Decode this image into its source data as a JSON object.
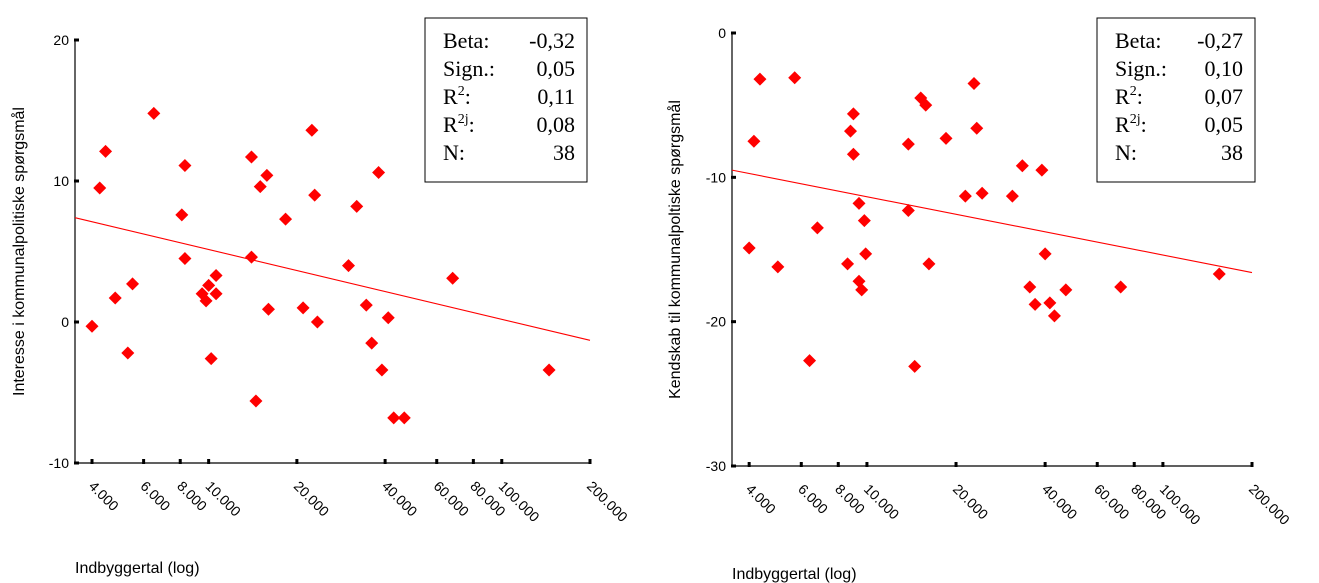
{
  "chart_data": [
    {
      "type": "scatter",
      "title": "",
      "xlabel": "Indbyggertal (log)",
      "ylabel": "Interesse i kommunalpolitiske spørgsmål",
      "xscale": "log",
      "xlim": [
        3500,
        200000
      ],
      "ylim": [
        -10,
        20
      ],
      "yticks": [
        {
          "value": -10,
          "label": "-10"
        },
        {
          "value": 0,
          "label": "0"
        },
        {
          "value": 10,
          "label": "10"
        },
        {
          "value": 20,
          "label": "20"
        }
      ],
      "xticks": [
        {
          "value": 4000,
          "label": "4.000"
        },
        {
          "value": 6000,
          "label": "6.000"
        },
        {
          "value": 8000,
          "label": "8.000"
        },
        {
          "value": 10000,
          "label": "10.000"
        },
        {
          "value": 20000,
          "label": "20.000"
        },
        {
          "value": 40000,
          "label": "40.000"
        },
        {
          "value": 60000,
          "label": "60.000"
        },
        {
          "value": 80000,
          "label": "80.000"
        },
        {
          "value": 100000,
          "label": "100.000"
        },
        {
          "value": 200000,
          "label": "200.000"
        }
      ],
      "marker_color": "#ff0000",
      "line_color": "#ff0000",
      "fit_line": {
        "x": [
          3500,
          200000
        ],
        "y": [
          7.4,
          -1.3
        ]
      },
      "stats_legend": {
        "placement": "top-right",
        "rows": [
          {
            "label": "Beta:",
            "sup": "",
            "value": "-0,32"
          },
          {
            "label": "Sign.:",
            "sup": "",
            "value": "0,05"
          },
          {
            "label": "R",
            "sup": "2",
            "suffix": ":",
            "value": "0,11"
          },
          {
            "label": "R",
            "sup": "2j",
            "suffix": ":",
            "value": "0,08"
          },
          {
            "label": "N:",
            "sup": "",
            "value": "38"
          }
        ]
      },
      "points": [
        {
          "x": 4000,
          "y": -0.3
        },
        {
          "x": 4250,
          "y": 9.5
        },
        {
          "x": 4450,
          "y": 12.1
        },
        {
          "x": 4800,
          "y": 1.7
        },
        {
          "x": 5300,
          "y": -2.2
        },
        {
          "x": 5500,
          "y": 2.7
        },
        {
          "x": 6500,
          "y": 14.8
        },
        {
          "x": 8100,
          "y": 7.6
        },
        {
          "x": 8300,
          "y": 11.1
        },
        {
          "x": 8300,
          "y": 4.5
        },
        {
          "x": 9500,
          "y": 2.0
        },
        {
          "x": 9800,
          "y": 1.5
        },
        {
          "x": 10000,
          "y": 2.6
        },
        {
          "x": 10200,
          "y": -2.6
        },
        {
          "x": 10600,
          "y": 2.0
        },
        {
          "x": 10600,
          "y": 3.3
        },
        {
          "x": 14000,
          "y": 11.7
        },
        {
          "x": 14000,
          "y": 4.6
        },
        {
          "x": 14500,
          "y": -5.6
        },
        {
          "x": 15000,
          "y": 9.6
        },
        {
          "x": 15800,
          "y": 10.4
        },
        {
          "x": 16000,
          "y": 0.9
        },
        {
          "x": 18300,
          "y": 7.3
        },
        {
          "x": 21000,
          "y": 1.0
        },
        {
          "x": 22500,
          "y": 13.6
        },
        {
          "x": 23000,
          "y": 9.0
        },
        {
          "x": 23500,
          "y": 0.0
        },
        {
          "x": 30000,
          "y": 4.0
        },
        {
          "x": 32000,
          "y": 8.2
        },
        {
          "x": 34500,
          "y": 1.2
        },
        {
          "x": 36000,
          "y": -1.5
        },
        {
          "x": 38000,
          "y": 10.6
        },
        {
          "x": 39000,
          "y": -3.4
        },
        {
          "x": 41000,
          "y": 0.3
        },
        {
          "x": 42800,
          "y": -6.8
        },
        {
          "x": 46500,
          "y": -6.8
        },
        {
          "x": 68000,
          "y": 3.1
        },
        {
          "x": 145000,
          "y": -3.4
        }
      ]
    },
    {
      "type": "scatter",
      "title": "",
      "xlabel": "Indbyggertal (log)",
      "ylabel": "Kendskab til kommunalpoltiske spørgsmål",
      "xscale": "log",
      "xlim": [
        3500,
        200000
      ],
      "ylim": [
        -30,
        0
      ],
      "yticks": [
        {
          "value": -30,
          "label": "-30"
        },
        {
          "value": -20,
          "label": "-20"
        },
        {
          "value": -10,
          "label": "-10"
        },
        {
          "value": 0,
          "label": "0"
        }
      ],
      "xticks": [
        {
          "value": 4000,
          "label": "4.000"
        },
        {
          "value": 6000,
          "label": "6.000"
        },
        {
          "value": 8000,
          "label": "8.000"
        },
        {
          "value": 10000,
          "label": "10.000"
        },
        {
          "value": 20000,
          "label": "20.000"
        },
        {
          "value": 40000,
          "label": "40.000"
        },
        {
          "value": 60000,
          "label": "60.000"
        },
        {
          "value": 80000,
          "label": "80.000"
        },
        {
          "value": 100000,
          "label": "100.000"
        },
        {
          "value": 200000,
          "label": "200.000"
        }
      ],
      "marker_color": "#ff0000",
      "line_color": "#ff0000",
      "fit_line": {
        "x": [
          3500,
          200000
        ],
        "y": [
          -9.5,
          -16.6
        ]
      },
      "stats_legend": {
        "placement": "top-right",
        "rows": [
          {
            "label": "Beta:",
            "sup": "",
            "value": "-0,27"
          },
          {
            "label": "Sign.:",
            "sup": "",
            "value": "0,10"
          },
          {
            "label": "R",
            "sup": "2",
            "suffix": ":",
            "value": "0,07"
          },
          {
            "label": "R",
            "sup": "2j",
            "suffix": ":",
            "value": "0,05"
          },
          {
            "label": "N:",
            "sup": "",
            "value": "38"
          }
        ]
      },
      "points": [
        {
          "x": 4000,
          "y": -14.9
        },
        {
          "x": 4150,
          "y": -7.5
        },
        {
          "x": 4350,
          "y": -3.2
        },
        {
          "x": 5000,
          "y": -16.2
        },
        {
          "x": 5700,
          "y": -3.1
        },
        {
          "x": 6400,
          "y": -22.7
        },
        {
          "x": 6800,
          "y": -13.5
        },
        {
          "x": 8600,
          "y": -16.0
        },
        {
          "x": 9000,
          "y": -5.6
        },
        {
          "x": 8800,
          "y": -6.8
        },
        {
          "x": 9000,
          "y": -8.4
        },
        {
          "x": 9400,
          "y": -11.8
        },
        {
          "x": 9400,
          "y": -17.2
        },
        {
          "x": 9600,
          "y": -17.8
        },
        {
          "x": 9800,
          "y": -13.0
        },
        {
          "x": 9900,
          "y": -15.3
        },
        {
          "x": 13800,
          "y": -7.7
        },
        {
          "x": 13800,
          "y": -12.3
        },
        {
          "x": 14500,
          "y": -23.1
        },
        {
          "x": 15200,
          "y": -4.5
        },
        {
          "x": 15800,
          "y": -5.0
        },
        {
          "x": 16200,
          "y": -16.0
        },
        {
          "x": 18500,
          "y": -7.3
        },
        {
          "x": 21500,
          "y": -11.3
        },
        {
          "x": 23000,
          "y": -3.5
        },
        {
          "x": 23500,
          "y": -6.6
        },
        {
          "x": 24500,
          "y": -11.1
        },
        {
          "x": 31000,
          "y": -11.3
        },
        {
          "x": 33500,
          "y": -9.2
        },
        {
          "x": 35500,
          "y": -17.6
        },
        {
          "x": 37000,
          "y": -18.8
        },
        {
          "x": 39000,
          "y": -9.5
        },
        {
          "x": 40000,
          "y": -15.3
        },
        {
          "x": 41500,
          "y": -18.7
        },
        {
          "x": 43000,
          "y": -19.6
        },
        {
          "x": 47000,
          "y": -17.8
        },
        {
          "x": 72000,
          "y": -17.6
        },
        {
          "x": 155000,
          "y": -16.7
        }
      ]
    }
  ]
}
